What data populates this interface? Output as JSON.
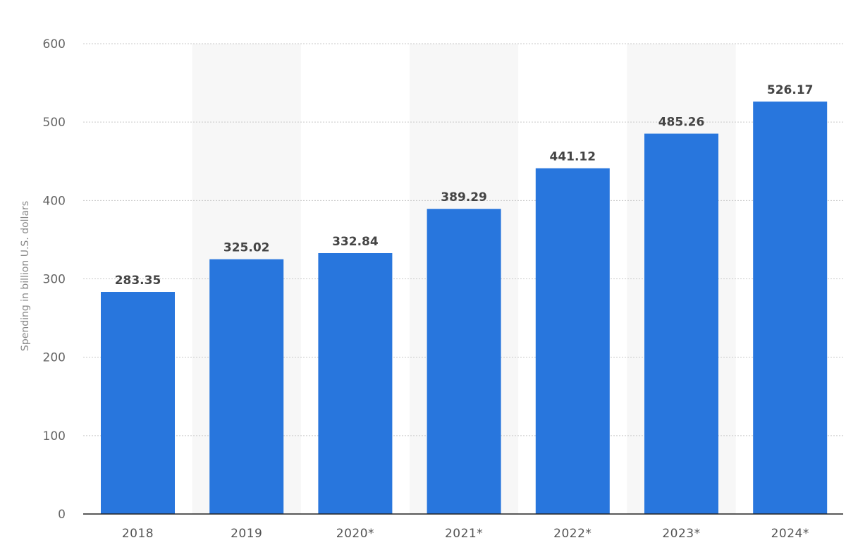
{
  "chart_data": {
    "type": "bar",
    "categories": [
      "2018",
      "2019",
      "2020*",
      "2021*",
      "2022*",
      "2023*",
      "2024*"
    ],
    "values": [
      283.35,
      325.02,
      332.84,
      389.29,
      441.12,
      485.26,
      526.17
    ],
    "value_labels": [
      "283.35",
      "325.02",
      "332.84",
      "389.29",
      "441.12",
      "485.26",
      "526.17"
    ],
    "title": "",
    "xlabel": "",
    "ylabel": "Spending in billion U.S. dollars",
    "ylim": [
      0,
      600
    ],
    "yticks": [
      "0",
      "100",
      "200",
      "300",
      "400",
      "500",
      "600"
    ],
    "grid": true,
    "legend": "none",
    "colors": {
      "bar": "#2876dd",
      "band": "#f7f7f7",
      "grid": "#c8c8c8",
      "baseline": "#222222"
    }
  }
}
